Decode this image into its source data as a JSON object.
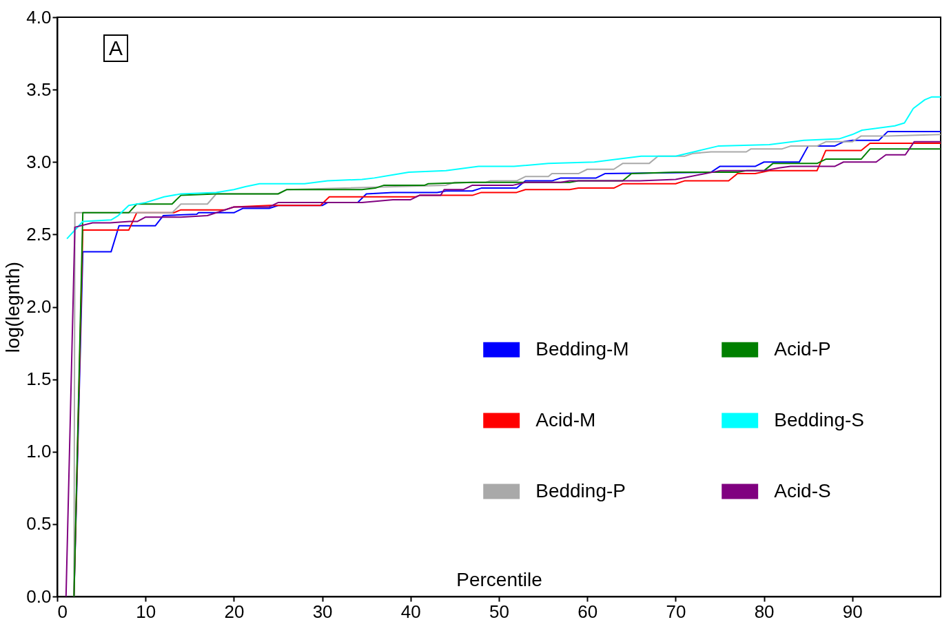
{
  "chart_data": {
    "type": "line",
    "xlabel": "Percentile",
    "ylabel": "log(legnth)",
    "annotations": [
      "A"
    ],
    "xlim": [
      0,
      100
    ],
    "xticks": [
      0,
      10,
      20,
      30,
      40,
      50,
      60,
      70,
      80,
      90
    ],
    "ylim": [
      0,
      4
    ],
    "yticks": [
      {
        "value": 0,
        "label": "0.0"
      },
      {
        "value": 0.5,
        "label": "0.5"
      },
      {
        "value": 1,
        "label": "1.0"
      },
      {
        "value": 1.5,
        "label": "1.5"
      },
      {
        "value": 2,
        "label": "2.0"
      },
      {
        "value": 2.5,
        "label": "2.5"
      },
      {
        "value": 3,
        "label": "3.0"
      },
      {
        "value": 3.5,
        "label": "3.5"
      },
      {
        "value": 4,
        "label": "4.0"
      }
    ],
    "grid": false,
    "legend": "right",
    "marker": "none",
    "line_style": "solid",
    "series": [
      {
        "name": "Bedding-M",
        "color": "#0000ff",
        "x": [
          1.9,
          2.9,
          6.1,
          7.0,
          11.1,
          12,
          15.8,
          16,
          20,
          21,
          24,
          25,
          30,
          30.6,
          34,
          35,
          38,
          43,
          44,
          47,
          48,
          52,
          53,
          56,
          57,
          61,
          62,
          74,
          75,
          79,
          80,
          84,
          85,
          88,
          89,
          90,
          93,
          94,
          100
        ],
        "values": [
          0,
          2.38,
          2.38,
          2.56,
          2.56,
          2.63,
          2.64,
          2.65,
          2.65,
          2.68,
          2.68,
          2.7,
          2.7,
          2.72,
          2.72,
          2.78,
          2.79,
          2.79,
          2.8,
          2.8,
          2.82,
          2.82,
          2.87,
          2.87,
          2.89,
          2.89,
          2.92,
          2.93,
          2.97,
          2.97,
          3.0,
          3.0,
          3.11,
          3.11,
          3.14,
          3.15,
          3.15,
          3.21,
          3.21
        ]
      },
      {
        "name": "Acid-M",
        "color": "#ff0000",
        "x": [
          1.9,
          2.9,
          8.1,
          9.0,
          13.2,
          14,
          19,
          20,
          24,
          29.8,
          30.8,
          40.6,
          41,
          47,
          48,
          52,
          53,
          58,
          59,
          63,
          64,
          70,
          71,
          76,
          77,
          79,
          80.6,
          86,
          87,
          91,
          92,
          100
        ],
        "values": [
          0,
          2.53,
          2.53,
          2.65,
          2.65,
          2.67,
          2.67,
          2.69,
          2.7,
          2.7,
          2.76,
          2.76,
          2.77,
          2.77,
          2.79,
          2.79,
          2.81,
          2.81,
          2.82,
          2.82,
          2.85,
          2.85,
          2.87,
          2.87,
          2.92,
          2.92,
          2.94,
          2.94,
          3.08,
          3.08,
          3.13,
          3.13
        ]
      },
      {
        "name": "Bedding-P",
        "color": "#a9a9a9",
        "x": [
          1.9,
          2.0,
          13,
          14,
          17,
          18,
          25,
          26,
          44,
          45,
          48.5,
          49,
          52,
          53,
          55.6,
          56,
          59,
          60,
          63,
          64,
          67,
          68,
          71,
          72,
          74,
          78,
          78.5,
          82,
          83,
          86,
          87,
          90,
          91,
          94,
          100
        ],
        "values": [
          0,
          2.65,
          2.65,
          2.71,
          2.71,
          2.78,
          2.78,
          2.81,
          2.84,
          2.86,
          2.86,
          2.87,
          2.87,
          2.9,
          2.9,
          2.92,
          2.92,
          2.95,
          2.95,
          2.99,
          2.99,
          3.04,
          3.04,
          3.06,
          3.07,
          3.07,
          3.09,
          3.09,
          3.11,
          3.11,
          3.14,
          3.14,
          3.18,
          3.18,
          3.19
        ]
      },
      {
        "name": "Acid-P",
        "color": "#008000",
        "x": [
          1.9,
          2.9,
          8.1,
          9,
          13,
          14,
          18,
          25,
          26,
          34.5,
          36,
          37,
          41.6,
          42,
          47,
          58,
          59,
          64,
          65,
          70,
          77,
          78,
          80,
          81,
          86,
          87,
          91,
          92,
          100
        ],
        "values": [
          0,
          2.65,
          2.65,
          2.71,
          2.71,
          2.77,
          2.78,
          2.78,
          2.81,
          2.81,
          2.82,
          2.84,
          2.84,
          2.85,
          2.86,
          2.86,
          2.87,
          2.87,
          2.92,
          2.93,
          2.93,
          2.94,
          2.94,
          2.99,
          2.99,
          3.02,
          3.02,
          3.09,
          3.09
        ]
      },
      {
        "name": "Bedding-S",
        "color": "#00ffff",
        "x": [
          1.1,
          2.9,
          6.1,
          6.9,
          8.1,
          10,
          12.1,
          14,
          18,
          20,
          21.3,
          22.9,
          28,
          30.6,
          34.5,
          35.9,
          39.8,
          44,
          47.7,
          51.7,
          55.6,
          60.8,
          66.1,
          70,
          74.8,
          80.6,
          84.5,
          88.5,
          90,
          91.1,
          94.8,
          95.9,
          96.9,
          98.2,
          99,
          100
        ],
        "values": [
          2.47,
          2.59,
          2.6,
          2.63,
          2.7,
          2.72,
          2.76,
          2.78,
          2.79,
          2.81,
          2.83,
          2.85,
          2.85,
          2.87,
          2.88,
          2.89,
          2.93,
          2.94,
          2.97,
          2.97,
          2.99,
          3.0,
          3.04,
          3.04,
          3.11,
          3.12,
          3.15,
          3.16,
          3.19,
          3.22,
          3.25,
          3.27,
          3.37,
          3.43,
          3.45,
          3.45
        ]
      },
      {
        "name": "Acid-S",
        "color": "#800080",
        "x": [
          1,
          2,
          4,
          6,
          8.2,
          9.1,
          10,
          11.9,
          12,
          14,
          17,
          20,
          24,
          25,
          34.5,
          38,
          40,
          41,
          43.4,
          43.8,
          46,
          47,
          51.6,
          53,
          57,
          58,
          66,
          70,
          75,
          80,
          81.7,
          83,
          88,
          89,
          92.7,
          93.8,
          96,
          97,
          100
        ],
        "values": [
          0,
          2.55,
          2.58,
          2.58,
          2.59,
          2.59,
          2.62,
          2.62,
          2.62,
          2.62,
          2.63,
          2.69,
          2.69,
          2.72,
          2.72,
          2.74,
          2.74,
          2.77,
          2.77,
          2.81,
          2.81,
          2.84,
          2.84,
          2.86,
          2.86,
          2.87,
          2.87,
          2.88,
          2.94,
          2.94,
          2.96,
          2.97,
          2.97,
          3.0,
          3.0,
          3.05,
          3.05,
          3.14,
          3.14
        ]
      }
    ]
  }
}
